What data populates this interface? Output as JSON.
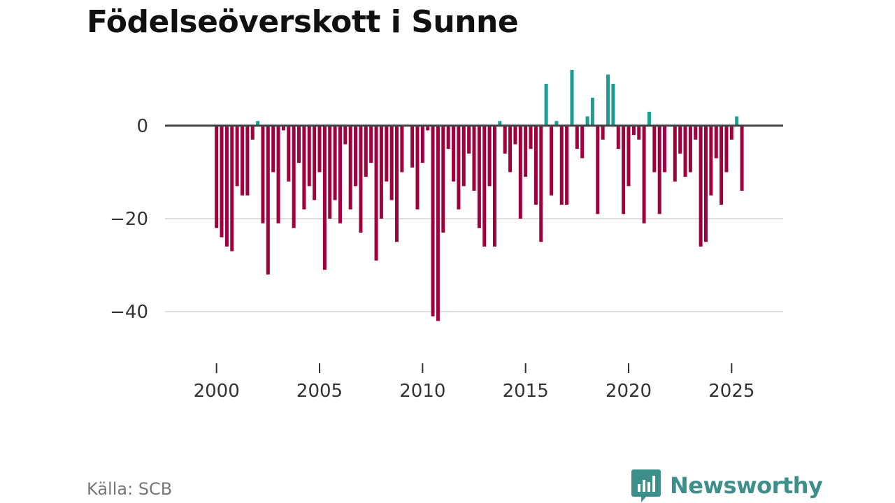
{
  "title": "Födelseöverskott i Sunne",
  "source": "Källa: SCB",
  "brand": {
    "name": "Newsworthy",
    "icon": "newsworthy-logo-icon",
    "color": "#3d8f8b"
  },
  "colors": {
    "positive": "#1a9e94",
    "negative": "#a0003c",
    "zero_line": "#444444",
    "grid": "#dddddd"
  },
  "chart_data": {
    "type": "bar",
    "title": "Födelseöverskott i Sunne",
    "xlabel": "",
    "ylabel": "",
    "x_start": 2000.0,
    "x_step": 0.25,
    "xlim": [
      1997.5,
      2027.5
    ],
    "ylim": [
      -49,
      12
    ],
    "y_ticks": [
      0,
      -20,
      -40
    ],
    "y_tick_labels": [
      "0",
      "−20",
      "−40"
    ],
    "x_ticks": [
      2000,
      2005,
      2010,
      2015,
      2020,
      2025
    ],
    "x_tick_labels": [
      "2000",
      "2005",
      "2010",
      "2015",
      "2020",
      "2025"
    ],
    "grid": "horizontal",
    "values": [
      -22,
      -24,
      -26,
      -27,
      -13,
      -15,
      -15,
      -3,
      1,
      -21,
      -32,
      -10,
      -21,
      -1,
      -12,
      -22,
      -8,
      -18,
      -13,
      -16,
      -10,
      -31,
      -20,
      -16,
      -21,
      -4,
      -18,
      -13,
      -23,
      -11,
      -8,
      -29,
      -20,
      -12,
      -16,
      -25,
      -10,
      0,
      -9,
      -18,
      -8,
      -1,
      -41,
      -42,
      -23,
      -5,
      -12,
      -18,
      -13,
      -6,
      -14,
      -22,
      -26,
      -13,
      -26,
      1,
      -6,
      -10,
      -4,
      -20,
      -11,
      -5,
      -17,
      -25,
      9,
      -15,
      1,
      -17,
      -17,
      12,
      -5,
      -7,
      2,
      6,
      -19,
      -3,
      11,
      9,
      -5,
      -19,
      -13,
      -2,
      -3,
      -21,
      3,
      -10,
      -19,
      -10,
      0,
      -12,
      -6,
      -11,
      -10,
      -3,
      -26,
      -25,
      -15,
      -7,
      -17,
      -10,
      -3,
      2,
      -14
    ]
  }
}
